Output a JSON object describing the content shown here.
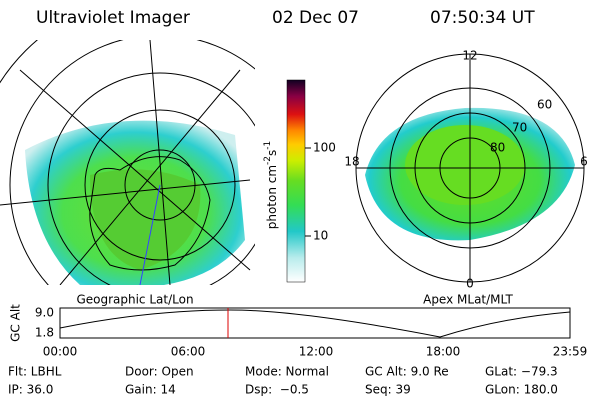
{
  "header": {
    "instrument": "Ultraviolet Imager",
    "date": "02 Dec 07",
    "time": "07:50:34 UT"
  },
  "left_panel": {
    "label": "Geographic Lat/Lon"
  },
  "right_panel": {
    "label": "Apex MLat/MLT",
    "mlt_labels": [
      "12",
      "18",
      "6",
      "0"
    ],
    "mlat_labels": [
      "60",
      "70",
      "80"
    ]
  },
  "colorbar": {
    "label": "photon cm",
    "exp1": "-2",
    "unit2": "s",
    "exp2": "-1",
    "tick_labels": [
      "100",
      "10"
    ]
  },
  "altitude_plot": {
    "ylabel": "GC Alt",
    "ytick_labels": [
      "9.0",
      "1.8"
    ],
    "xtick_labels": [
      "00:00",
      "06:00",
      "12:00",
      "18:00",
      "23:59"
    ]
  },
  "info": {
    "rows": [
      [
        "Flt: LBHL",
        "Door: Open",
        "Mode: Normal",
        "GC Alt: 9.0 Re",
        "GLat: −79.3"
      ],
      [
        "IP: 36.0",
        "Gain: 14",
        "Dsp:  −0.5",
        "Seq: 39",
        "GLon: 180.0"
      ]
    ]
  }
}
